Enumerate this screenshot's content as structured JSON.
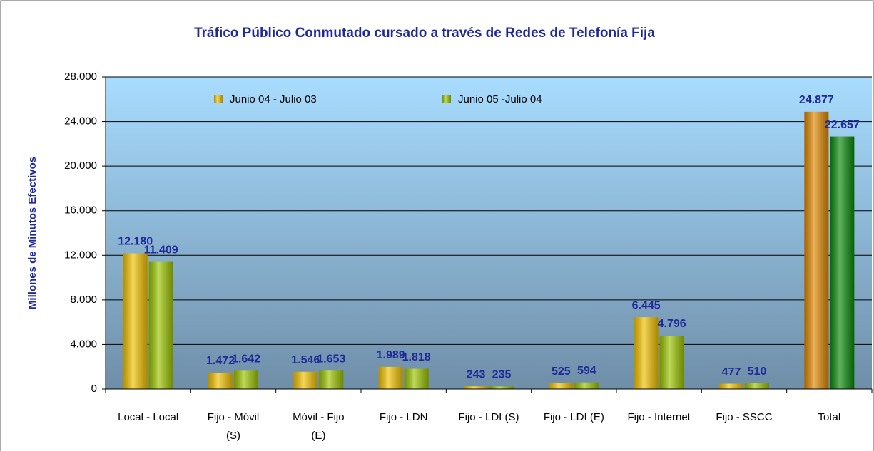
{
  "chart_data": {
    "type": "bar",
    "title": "Tráfico Público Conmutado cursado a través de Redes de Telefonía Fija",
    "y_label": "Millones de Minutos Efectivos",
    "categories": [
      "Local - Local",
      "Fijo - Móvil (S)",
      "Móvil - Fijo (E)",
      "Fijo - LDN",
      "Fijo - LDI (S)",
      "Fijo - LDI (E)",
      "Fijo - Internet",
      "Fijo - SSCC",
      "Total"
    ],
    "series": [
      {
        "name": "Junio 04 - Julio 03",
        "color": "#f2c200",
        "point_colors": [
          "#f2c200",
          "#f2c200",
          "#f2c200",
          "#f2c200",
          "#f2c200",
          "#f2c200",
          "#f2c200",
          "#f2c200",
          "#e08800"
        ],
        "values": [
          12180,
          1472,
          1546,
          1989,
          243,
          525,
          6445,
          477,
          24877
        ],
        "value_labels": [
          "12.180",
          "1.472",
          "1.546",
          "1.989",
          "243",
          "525",
          "6.445",
          "477",
          "24.877"
        ]
      },
      {
        "name": "Junio 05 -Julio 04",
        "color": "#9cc400",
        "point_colors": [
          "#9cc400",
          "#9cc400",
          "#9cc400",
          "#9cc400",
          "#9cc400",
          "#9cc400",
          "#9cc400",
          "#9cc400",
          "#0a8a0a"
        ],
        "values": [
          11409,
          1642,
          1653,
          1818,
          235,
          594,
          4796,
          510,
          22657
        ],
        "value_labels": [
          "11.409",
          "1.642",
          "1.653",
          "1.818",
          "235",
          "594",
          "4.796",
          "510",
          "22.657"
        ]
      }
    ],
    "ylim": [
      0,
      28000
    ],
    "yticks": [
      0,
      {
        "value": 4000,
        "label": "4.000"
      },
      {
        "value": 8000,
        "label": "8.000"
      },
      {
        "value": 12000,
        "label": "12.000"
      },
      {
        "value": 16000,
        "label": "16.000"
      },
      {
        "value": 20000,
        "label": "20.000"
      },
      {
        "value": 24000,
        "label": "24.000"
      },
      {
        "value": 28000,
        "label": "28.000"
      }
    ],
    "grid": true,
    "legend": "top"
  }
}
